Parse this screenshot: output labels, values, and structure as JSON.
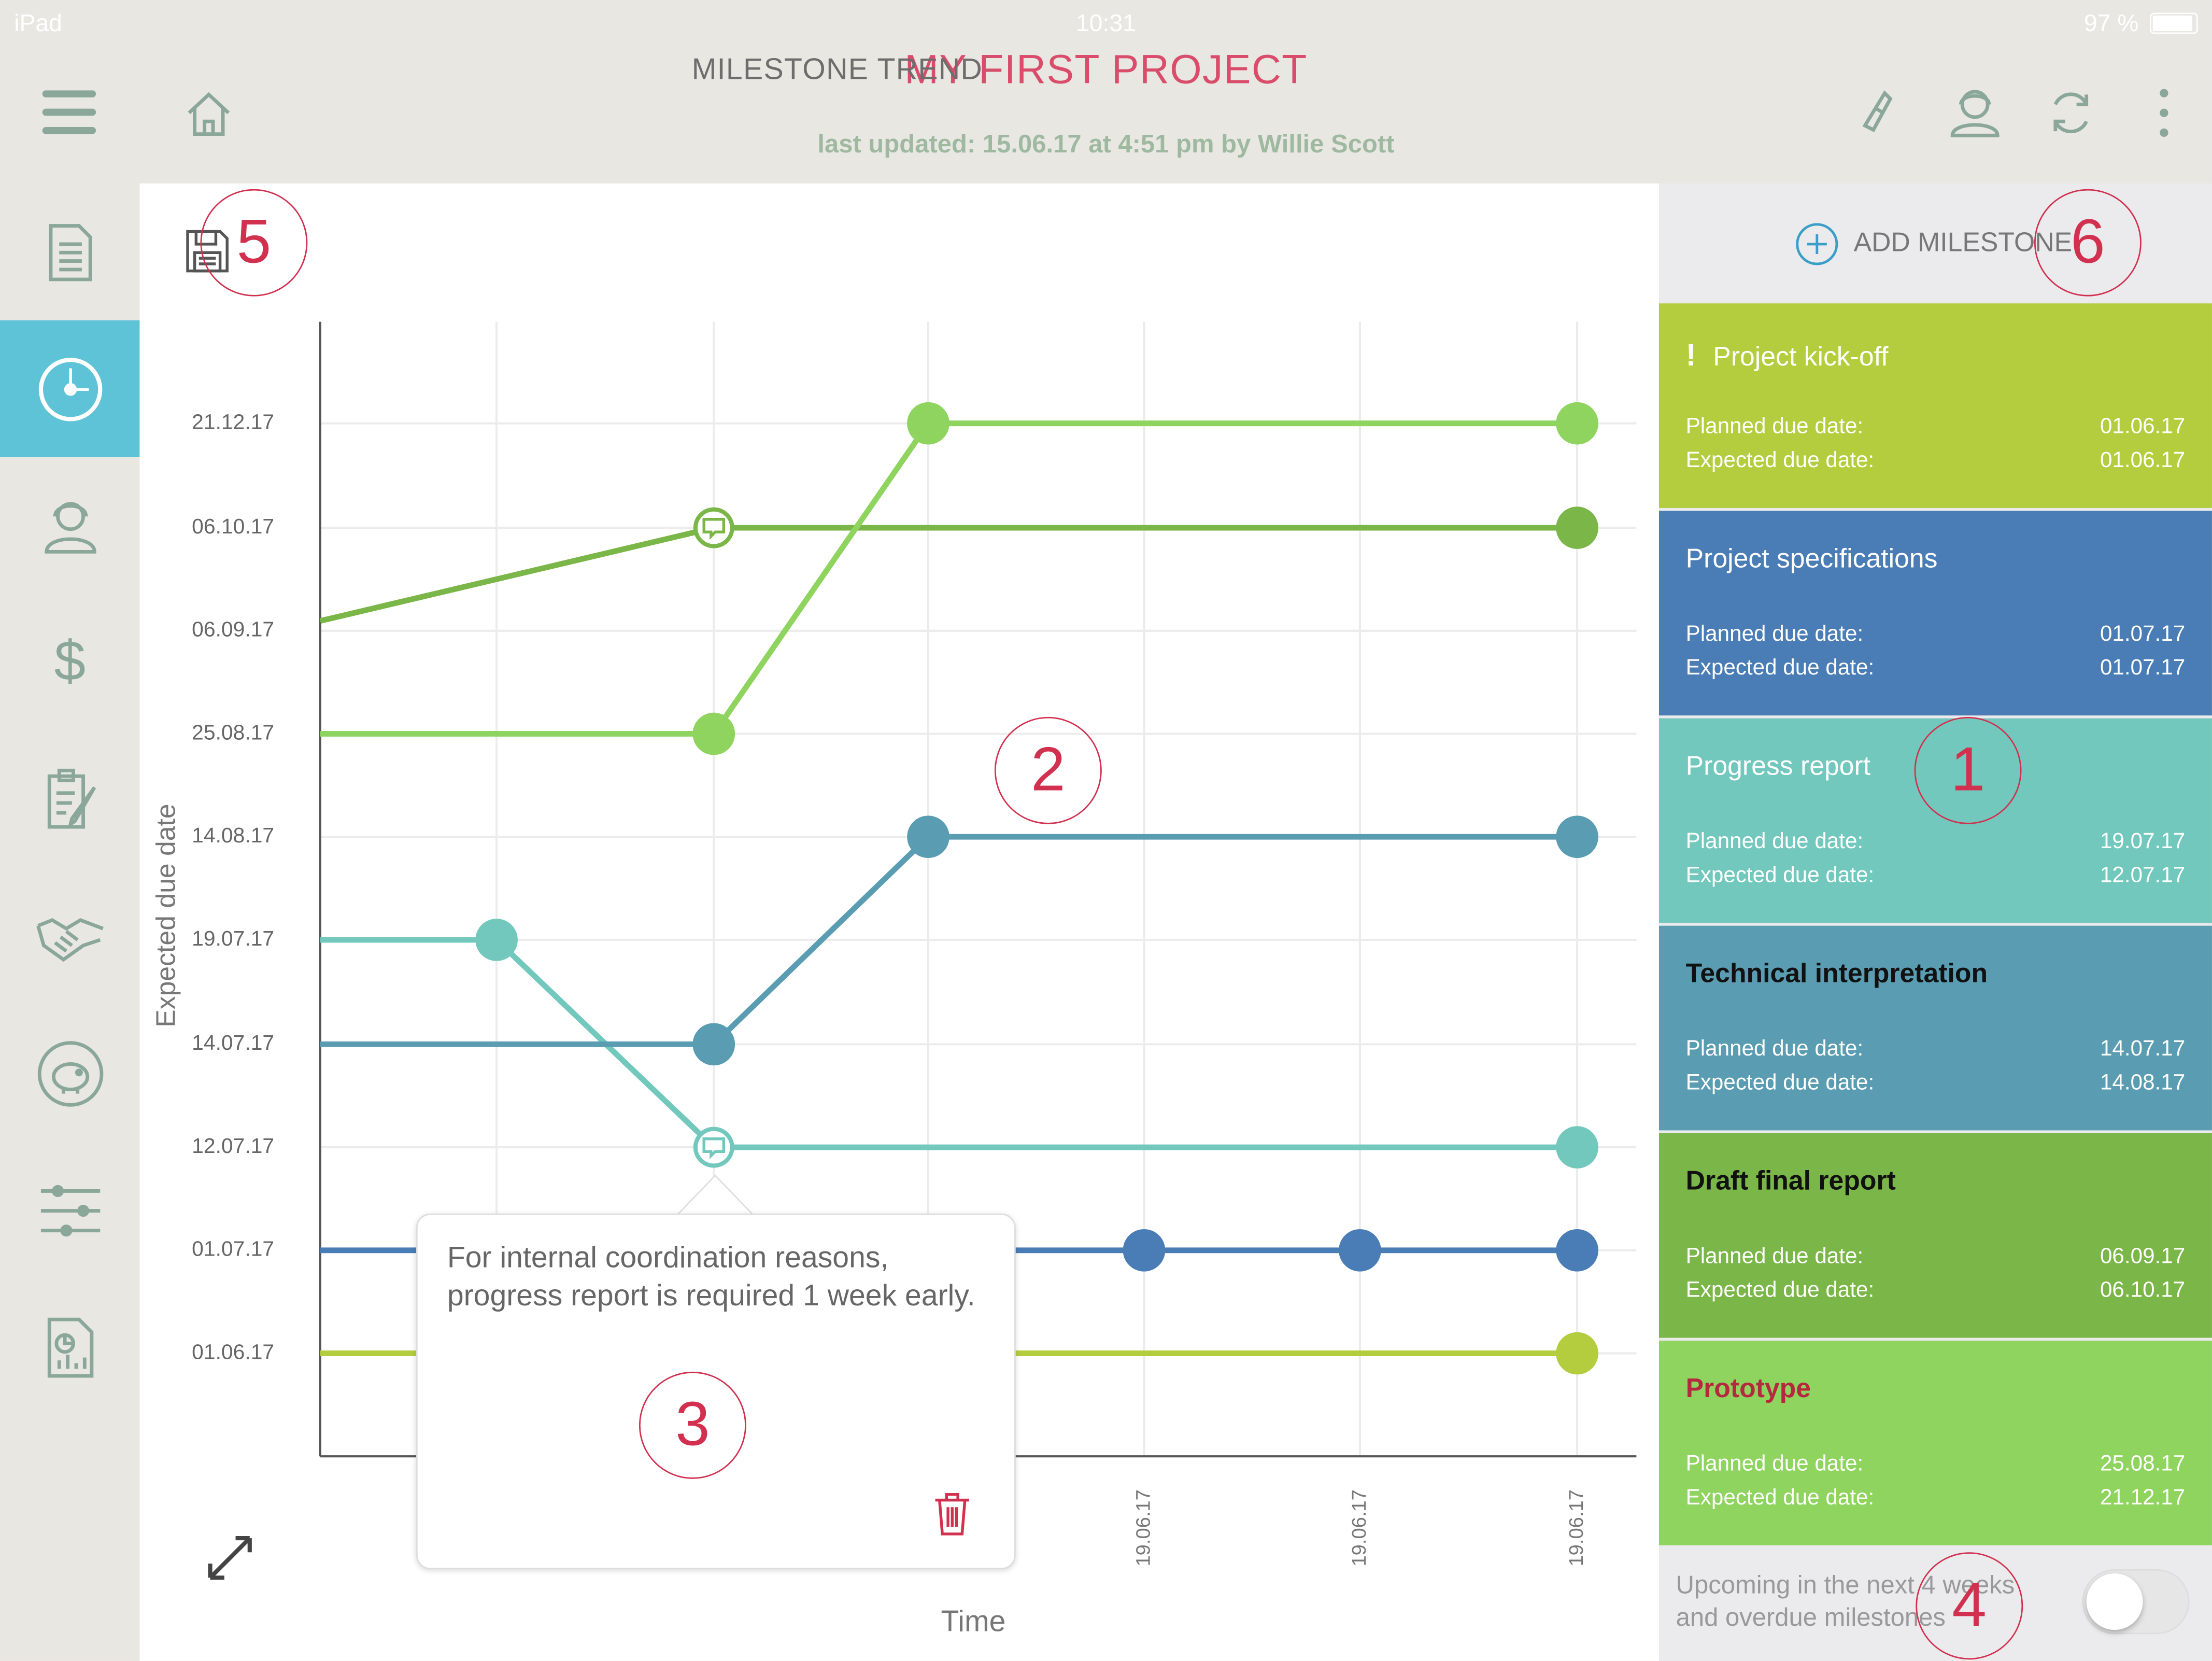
{
  "status_bar": {
    "device": "iPad",
    "time": "10:31",
    "battery": "97 %"
  },
  "header": {
    "title": "MY FIRST PROJECT",
    "updated": "last updated: 15.06.17 at 4:51 pm by Willie Scott",
    "icons": [
      "menu-icon",
      "home-icon",
      "link-icon",
      "team-icon",
      "sync-icon",
      "more-icon"
    ]
  },
  "sidebar": {
    "items": [
      "document-icon",
      "milestone-icon",
      "people-icon",
      "dollar-icon",
      "checklist-icon",
      "handshake-icon",
      "piggybank-icon",
      "sliders-icon",
      "report-icon"
    ],
    "active_index": 1
  },
  "chart_panel": {
    "title": "MILESTONE TREND",
    "save_icon": "save-icon",
    "expand_icon": "expand-icon"
  },
  "chart_data": {
    "type": "line",
    "title": "MILESTONE TREND",
    "xlabel": "Time",
    "ylabel": "Expected due date",
    "y_ticks": [
      "01.06.17",
      "01.07.17",
      "12.07.17",
      "14.07.17",
      "19.07.17",
      "14.08.17",
      "25.08.17",
      "06.09.17",
      "06.10.17",
      "21.12.17"
    ],
    "x_ticks": [
      "19.06.17",
      "19.06.17",
      "19.06.17"
    ],
    "grid": true,
    "series": [
      {
        "name": "Project kick-off",
        "color": "#b3cd3f",
        "points": [
          [
            "",
            "01.06.17"
          ],
          [
            "19.06.17",
            "01.06.17"
          ]
        ]
      },
      {
        "name": "Project specifications",
        "color": "#4a7db5",
        "points": [
          [
            "",
            "01.07.17"
          ],
          [
            "19.06.17",
            "01.07.17"
          ],
          [
            "19.06.17",
            "01.07.17"
          ],
          [
            "19.06.17",
            "01.07.17"
          ]
        ]
      },
      {
        "name": "Progress report",
        "color": "#72c8bc",
        "points": [
          [
            "",
            "19.07.17"
          ],
          [
            "",
            "19.07.17"
          ],
          [
            "",
            "12.07.17"
          ],
          [
            "19.06.17",
            "12.07.17"
          ]
        ]
      },
      {
        "name": "Technical interpretation",
        "color": "#5a9db2",
        "points": [
          [
            "",
            "14.07.17"
          ],
          [
            "",
            "14.07.17"
          ],
          [
            "",
            "14.08.17"
          ],
          [
            "19.06.17",
            "14.08.17"
          ]
        ]
      },
      {
        "name": "Draft final report",
        "color": "#7ab648",
        "points": [
          [
            "",
            "06.09.17"
          ],
          [
            "",
            "06.10.17"
          ],
          [
            "19.06.17",
            "06.10.17"
          ]
        ]
      },
      {
        "name": "Prototype",
        "color": "#8fd45e",
        "points": [
          [
            "",
            "25.08.17"
          ],
          [
            "",
            "25.08.17"
          ],
          [
            "",
            "21.12.17"
          ],
          [
            "19.06.17",
            "21.12.17"
          ]
        ]
      }
    ]
  },
  "tooltip": {
    "text": "For internal coordination reasons, progress report is required 1 week early.",
    "delete_icon": "trash-icon"
  },
  "right_panel": {
    "add_label": "ADD MILESTONE",
    "planned_label": "Planned due date:",
    "expected_label": "Expected due date:",
    "milestones": [
      {
        "name": "Project kick-off",
        "planned": "01.06.17",
        "expected": "01.06.17",
        "color": "#b3cd3f",
        "flag": "!"
      },
      {
        "name": "Project specifications",
        "planned": "01.07.17",
        "expected": "01.07.17",
        "color": "#4a7db5"
      },
      {
        "name": "Progress report",
        "planned": "19.07.17",
        "expected": "12.07.17",
        "color": "#72c8bc"
      },
      {
        "name": "Technical interpretation",
        "planned": "14.07.17",
        "expected": "14.08.17",
        "color": "#5a9db2"
      },
      {
        "name": "Draft final report",
        "planned": "06.09.17",
        "expected": "06.10.17",
        "color": "#7ab648"
      },
      {
        "name": "Prototype",
        "planned": "25.08.17",
        "expected": "21.12.17",
        "color": "#8fd45e"
      }
    ],
    "filter_label_1": "Upcoming in the next 4 weeks",
    "filter_label_2": "and overdue milestones",
    "filter_on": false
  },
  "callouts": [
    "1",
    "2",
    "3",
    "4",
    "5",
    "6"
  ]
}
